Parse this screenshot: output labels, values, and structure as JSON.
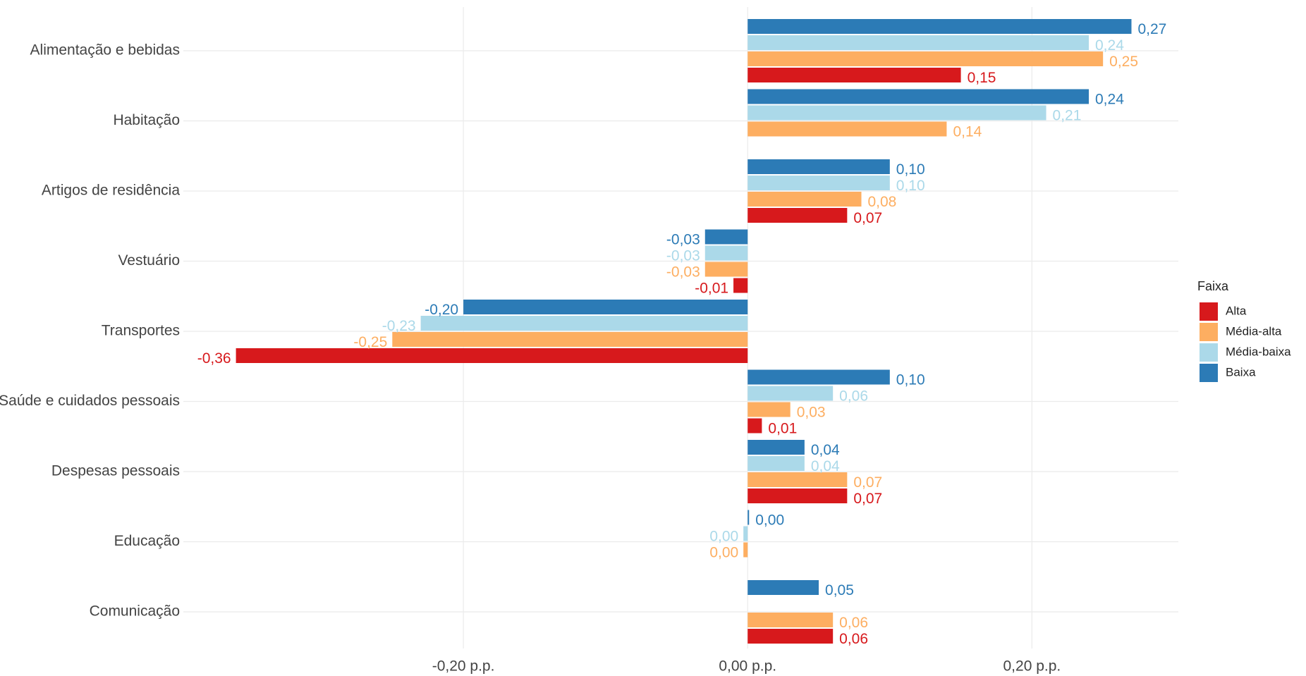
{
  "chart_data": {
    "type": "hbar",
    "categories": [
      "Alimentação e bebidas",
      "Habitação",
      "Artigos de residência",
      "Vestuário",
      "Transportes",
      "Saúde e cuidados pessoais",
      "Despesas pessoais",
      "Educação",
      "Comunicação"
    ],
    "series": [
      {
        "name": "Alta",
        "color": "#d7191c",
        "values": [
          0.15,
          null,
          0.07,
          -0.01,
          -0.36,
          0.01,
          0.07,
          null,
          0.06
        ],
        "value_labels": [
          "0,15",
          null,
          "0,07",
          "-0,01",
          "-0,36",
          "0,01",
          "0,07",
          null,
          "0,06"
        ]
      },
      {
        "name": "Média-alta",
        "color": "#fdae61",
        "values": [
          0.25,
          0.14,
          0.08,
          -0.03,
          -0.25,
          0.03,
          0.07,
          -0.003,
          0.06
        ],
        "value_labels": [
          "0,25",
          "0,14",
          "0,08",
          "-0,03",
          "-0,25",
          "0,03",
          "0,07",
          "0,00",
          "0,06"
        ]
      },
      {
        "name": "Média-baixa",
        "color": "#abd9e9",
        "values": [
          0.24,
          0.21,
          0.1,
          -0.03,
          -0.23,
          0.06,
          0.04,
          -0.003,
          null
        ],
        "value_labels": [
          "0,24",
          "0,21",
          "0,10",
          "-0,03",
          "-0,23",
          "0,06",
          "0,04",
          "0,00",
          null
        ]
      },
      {
        "name": "Baixa",
        "color": "#2c7bb6",
        "values": [
          0.27,
          0.24,
          0.1,
          -0.03,
          -0.2,
          0.1,
          0.04,
          0.001,
          0.05
        ],
        "value_labels": [
          "0,27",
          "0,24",
          "0,10",
          "-0,03",
          "-0,20",
          "0,10",
          "0,04",
          "0,00",
          "0,05"
        ]
      }
    ],
    "xlim": [
      -0.397,
      0.303
    ],
    "xticks": [
      {
        "value": -0.2,
        "label": "-0,20 p.p."
      },
      {
        "value": 0,
        "label": "0,00 p.p."
      },
      {
        "value": 0.2,
        "label": "0,20 p.p."
      }
    ],
    "grid": true,
    "legend_title": "Faixa",
    "legend_position": "right"
  }
}
